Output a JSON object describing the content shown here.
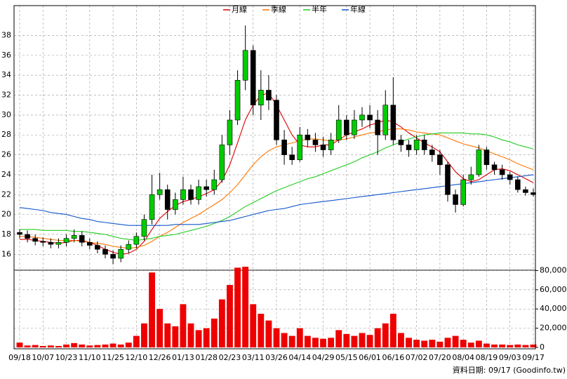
{
  "chart_data": {
    "type": "candlestick",
    "categories": [
      "09/18",
      null,
      null,
      "10/07",
      null,
      null,
      "10/23",
      null,
      null,
      "11/10",
      null,
      null,
      "11/25",
      null,
      null,
      "12/10",
      null,
      null,
      "12/26",
      null,
      null,
      "01/13",
      null,
      null,
      "01/28",
      null,
      null,
      "02/23",
      null,
      null,
      "03/11",
      null,
      null,
      "03/26",
      null,
      null,
      "04/14",
      null,
      null,
      "04/29",
      null,
      null,
      "05/15",
      null,
      null,
      "06/01",
      null,
      null,
      "06/16",
      null,
      null,
      "07/02",
      null,
      null,
      "07/20",
      null,
      null,
      "08/04",
      null,
      null,
      "08/19",
      null,
      null,
      "09/03",
      null,
      null,
      "09/17"
    ],
    "open": [
      18.2,
      18.0,
      17.6,
      17.3,
      17.2,
      17.0,
      17.2,
      17.6,
      17.9,
      17.2,
      16.9,
      16.5,
      16.0,
      15.6,
      16.5,
      17.0,
      17.8,
      19.5,
      22.0,
      22.5,
      20.5,
      21.5,
      22.5,
      21.5,
      22.8,
      22.5,
      23.5,
      27.0,
      29.5,
      33.5,
      36.5,
      31.0,
      32.5,
      31.5,
      27.5,
      26.0,
      25.5,
      28.0,
      27.5,
      27.0,
      26.5,
      27.5,
      29.5,
      28.0,
      29.5,
      30.0,
      29.5,
      28.0,
      31.0,
      27.5,
      27.0,
      26.5,
      27.5,
      26.5,
      26.0,
      25.0,
      22.0,
      21.0,
      23.5,
      24.0,
      26.5,
      25.0,
      24.5,
      24.0,
      23.5,
      22.5,
      22.2
    ],
    "high": [
      18.5,
      18.4,
      18.0,
      17.7,
      17.6,
      17.6,
      18.0,
      18.5,
      18.3,
      17.6,
      17.3,
      16.9,
      16.4,
      16.9,
      17.4,
      18.2,
      20.0,
      24.0,
      24.2,
      23.0,
      22.2,
      23.8,
      23.0,
      23.5,
      23.5,
      24.5,
      28.0,
      30.5,
      34.5,
      39.0,
      37.0,
      34.5,
      34.0,
      32.0,
      28.5,
      26.8,
      28.8,
      28.6,
      28.2,
      27.8,
      28.2,
      31.0,
      30.0,
      30.5,
      30.8,
      31.0,
      30.5,
      32.5,
      33.8,
      28.0,
      27.5,
      28.0,
      28.0,
      27.0,
      26.5,
      25.3,
      22.5,
      24.0,
      24.8,
      27.0,
      26.8,
      25.3,
      25.0,
      24.3,
      23.8,
      22.8,
      22.6
    ],
    "low": [
      17.6,
      17.2,
      16.9,
      16.8,
      16.6,
      16.6,
      16.8,
      17.2,
      16.8,
      16.5,
      16.1,
      15.6,
      15.0,
      15.2,
      16.1,
      16.6,
      17.4,
      19.0,
      21.5,
      19.5,
      20.0,
      21.0,
      21.0,
      21.0,
      21.8,
      22.0,
      23.2,
      26.0,
      29.0,
      32.5,
      30.0,
      29.5,
      30.5,
      27.0,
      25.0,
      25.0,
      25.3,
      26.8,
      26.3,
      25.8,
      26.0,
      27.2,
      27.5,
      27.6,
      28.8,
      28.7,
      26.0,
      27.5,
      27.0,
      26.3,
      25.8,
      26.0,
      26.0,
      25.3,
      24.0,
      21.3,
      20.2,
      20.8,
      23.0,
      23.8,
      24.5,
      24.0,
      23.5,
      23.0,
      22.2,
      21.9,
      21.8
    ],
    "close": [
      18.0,
      17.6,
      17.3,
      17.2,
      17.0,
      17.2,
      17.6,
      17.9,
      17.2,
      16.9,
      16.5,
      16.0,
      15.6,
      16.5,
      17.0,
      17.8,
      19.5,
      22.0,
      22.5,
      20.5,
      21.5,
      22.5,
      21.5,
      22.8,
      22.5,
      23.5,
      27.0,
      29.5,
      33.5,
      36.5,
      31.0,
      32.5,
      31.5,
      27.5,
      26.0,
      25.5,
      28.0,
      27.5,
      27.0,
      26.5,
      27.5,
      29.5,
      28.0,
      29.5,
      30.0,
      29.5,
      28.0,
      31.0,
      27.5,
      27.0,
      26.5,
      27.5,
      26.5,
      26.0,
      25.0,
      22.0,
      21.0,
      23.5,
      24.0,
      26.5,
      25.0,
      24.5,
      24.0,
      23.5,
      22.5,
      22.2,
      22.0
    ],
    "up_color": "#00cc00",
    "down_color": "#000000",
    "series": [
      {
        "name": "月線",
        "color": "#dd0000",
        "values": [
          17.5,
          17.5,
          17.4,
          17.3,
          17.2,
          17.1,
          17.2,
          17.4,
          17.4,
          17.2,
          16.9,
          16.5,
          16.2,
          16.0,
          16.1,
          16.5,
          17.3,
          18.5,
          19.6,
          20.3,
          20.9,
          21.3,
          21.5,
          21.8,
          22.1,
          22.5,
          23.4,
          25.0,
          27.2,
          29.5,
          31.0,
          32.0,
          32.2,
          31.0,
          29.5,
          28.0,
          27.0,
          26.8,
          26.8,
          27.0,
          27.0,
          27.5,
          28.0,
          28.3,
          28.6,
          29.0,
          29.2,
          29.5,
          29.3,
          28.8,
          28.2,
          27.7,
          27.2,
          26.8,
          26.3,
          25.3,
          24.3,
          23.6,
          23.3,
          23.5,
          24.0,
          24.5,
          24.6,
          24.4,
          24.0,
          23.6,
          23.2
        ]
      },
      {
        "name": "季線",
        "color": "#ff7700",
        "values": [
          17.8,
          17.8,
          17.7,
          17.6,
          17.5,
          17.4,
          17.4,
          17.4,
          17.3,
          17.2,
          17.1,
          17.0,
          16.8,
          16.7,
          16.6,
          16.7,
          16.9,
          17.3,
          17.8,
          18.2,
          18.7,
          19.2,
          19.6,
          20.0,
          20.5,
          21.0,
          21.5,
          22.2,
          23.0,
          24.0,
          25.0,
          25.8,
          26.4,
          26.8,
          27.0,
          27.2,
          27.4,
          27.6,
          27.6,
          27.5,
          27.4,
          27.5,
          27.6,
          27.8,
          28.0,
          28.2,
          28.3,
          28.5,
          28.6,
          28.6,
          28.5,
          28.3,
          28.2,
          28.1,
          28.0,
          27.7,
          27.4,
          27.1,
          26.9,
          26.7,
          26.4,
          26.1,
          25.8,
          25.5,
          25.1,
          24.8,
          24.5
        ]
      },
      {
        "name": "半年",
        "color": "#22cc22",
        "values": [
          18.5,
          18.5,
          18.5,
          18.4,
          18.4,
          18.4,
          18.4,
          18.3,
          18.3,
          18.2,
          18.1,
          18.0,
          17.8,
          17.6,
          17.5,
          17.4,
          17.5,
          17.6,
          17.8,
          17.9,
          18.0,
          18.2,
          18.4,
          18.6,
          18.8,
          19.1,
          19.4,
          19.8,
          20.3,
          20.8,
          21.2,
          21.6,
          22.0,
          22.4,
          22.7,
          23.0,
          23.3,
          23.6,
          23.8,
          24.1,
          24.4,
          24.7,
          25.0,
          25.3,
          25.7,
          26.0,
          26.3,
          26.7,
          27.0,
          27.3,
          27.6,
          27.8,
          28.0,
          28.1,
          28.2,
          28.2,
          28.2,
          28.2,
          28.1,
          28.1,
          28.0,
          27.8,
          27.5,
          27.3,
          27.0,
          26.8,
          26.6
        ]
      },
      {
        "name": "年線",
        "color": "#1155cc",
        "values": [
          20.7,
          20.6,
          20.5,
          20.4,
          20.2,
          20.1,
          20.0,
          19.8,
          19.6,
          19.5,
          19.3,
          19.2,
          19.1,
          19.0,
          18.9,
          18.9,
          18.9,
          18.9,
          18.9,
          18.9,
          19.0,
          19.0,
          19.0,
          19.0,
          19.1,
          19.2,
          19.3,
          19.4,
          19.6,
          19.8,
          20.0,
          20.2,
          20.4,
          20.5,
          20.6,
          20.8,
          21.0,
          21.1,
          21.2,
          21.3,
          21.4,
          21.5,
          21.6,
          21.7,
          21.8,
          21.9,
          22.0,
          22.1,
          22.2,
          22.3,
          22.4,
          22.5,
          22.6,
          22.7,
          22.8,
          22.9,
          23.0,
          23.1,
          23.2,
          23.3,
          23.4,
          23.5,
          23.6,
          23.7,
          23.8,
          23.9,
          24.0
        ]
      }
    ],
    "ylim": [
      14.4,
      41.0
    ],
    "yticks": [
      16,
      18,
      20,
      22,
      24,
      26,
      28,
      30,
      32,
      34,
      36,
      38
    ],
    "grid": true,
    "volume": {
      "color": "#ee0000",
      "values": [
        5000,
        2000,
        2500,
        1500,
        2000,
        1500,
        3000,
        4500,
        3000,
        2000,
        2500,
        3000,
        4000,
        3000,
        5000,
        12000,
        25000,
        78000,
        40000,
        25000,
        22000,
        45000,
        25000,
        18000,
        20000,
        30000,
        50000,
        65000,
        83000,
        84000,
        45000,
        35000,
        28000,
        20000,
        15000,
        12000,
        20000,
        12000,
        10000,
        9000,
        10000,
        18000,
        14000,
        12000,
        15000,
        13000,
        20000,
        25000,
        35000,
        15000,
        10000,
        8000,
        7000,
        8000,
        6000,
        10000,
        12000,
        8000,
        5000,
        7000,
        4000,
        3000,
        3000,
        2500,
        3000,
        2500,
        3000
      ],
      "ylim": [
        0,
        84000
      ],
      "yticks": [
        0,
        {
          "value": 20000,
          "label": "20,000"
        },
        {
          "value": 40000,
          "label": "40,000"
        },
        {
          "value": 60000,
          "label": "60,000"
        },
        {
          "value": 80000,
          "label": "80,000"
        }
      ]
    },
    "source": "資料日期: 09/17 (Goodinfo.tw)"
  }
}
